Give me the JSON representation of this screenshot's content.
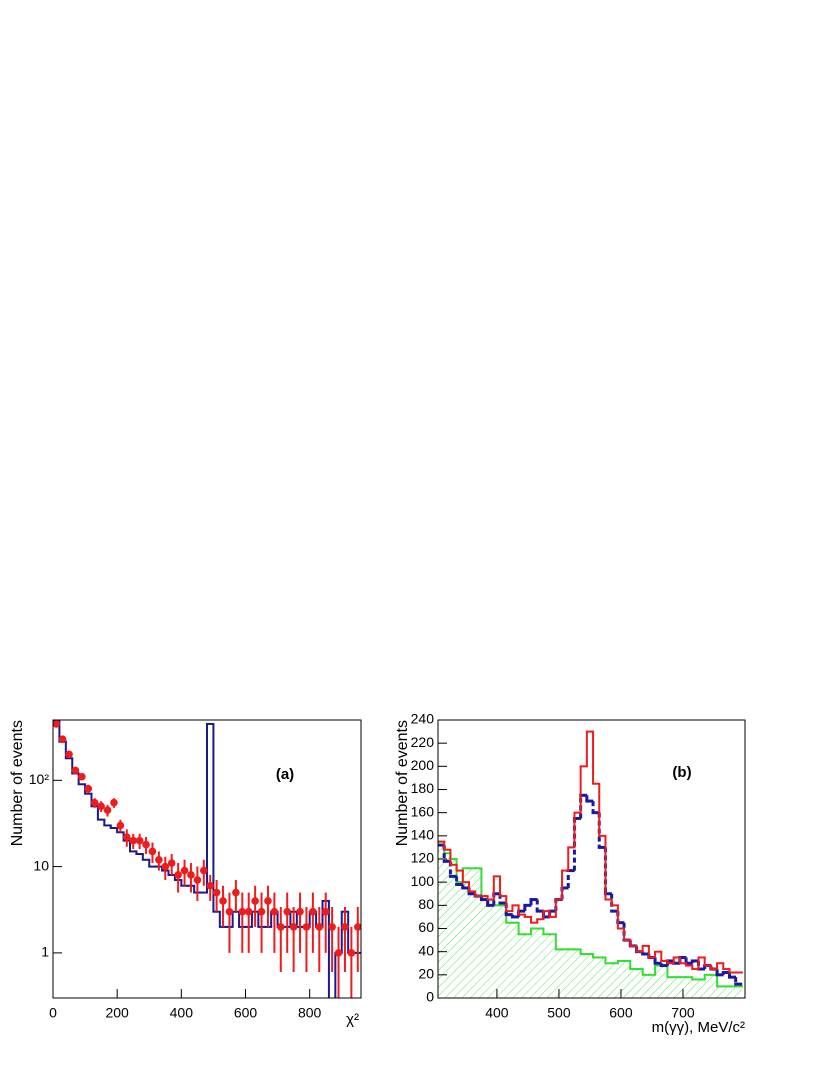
{
  "chart_data": [
    {
      "type": "histogram",
      "log_y": true,
      "xlabel": "χ²",
      "ylabel": "Number of events",
      "annotation": "(a)",
      "bins": [
        0,
        20,
        40,
        60,
        80,
        100,
        120,
        140,
        160,
        180,
        200,
        220,
        240,
        260,
        280,
        300,
        320,
        340,
        360,
        380,
        400,
        420,
        440,
        460,
        480,
        500,
        520,
        540,
        560,
        580,
        600,
        620,
        640,
        660,
        680,
        700,
        720,
        740,
        760,
        780,
        800,
        820,
        840,
        860,
        880,
        900,
        920,
        940,
        960
      ],
      "xlim": [
        0,
        960
      ],
      "ylim": [
        0.3,
        500
      ],
      "xticks": [
        0,
        200,
        400,
        600,
        800
      ],
      "yticks": [
        1,
        10,
        {
          "value": 100,
          "label": "10²"
        }
      ],
      "series": [
        {
          "color": "#1a1a8c",
          "style": "step",
          "values": [
            480,
            280,
            180,
            120,
            90,
            70,
            50,
            35,
            30,
            28,
            25,
            20,
            15,
            14,
            12,
            10,
            10,
            9,
            8,
            7,
            6,
            6,
            5,
            5,
            450,
            3,
            2,
            2,
            3,
            2,
            2,
            3,
            2,
            2,
            3,
            2,
            2,
            3,
            2,
            2,
            3,
            2,
            4,
            0,
            1,
            3,
            1,
            1
          ]
        },
        {
          "color": "#ee1c1c",
          "style": "points",
          "values": [
            450,
            300,
            200,
            130,
            110,
            80,
            55,
            50,
            45,
            55,
            30,
            22,
            20,
            20,
            18,
            15,
            12,
            10,
            11,
            8,
            9,
            8,
            7,
            9,
            6,
            5,
            4,
            3,
            5,
            3,
            3,
            4,
            3,
            4,
            3,
            2,
            3,
            2,
            3,
            2,
            3,
            2,
            3,
            2,
            1,
            2,
            1,
            2
          ],
          "errors": [
            21,
            17,
            14,
            11,
            10,
            9,
            7,
            7,
            7,
            7,
            5,
            5,
            4,
            4,
            4,
            4,
            3,
            3,
            3,
            3,
            3,
            3,
            3,
            3,
            2,
            2,
            2,
            2,
            2,
            2,
            2,
            2,
            2,
            2,
            2,
            1.4,
            2,
            1.4,
            2,
            1.4,
            2,
            1.4,
            2,
            1.4,
            1,
            1.4,
            1,
            1.4
          ]
        }
      ]
    },
    {
      "type": "histogram",
      "log_y": false,
      "xlabel": "m(γγ), MeV/c²",
      "ylabel": "Number of events",
      "annotation": "(b)",
      "bins": [
        305,
        315,
        325,
        335,
        345,
        355,
        365,
        375,
        385,
        395,
        405,
        415,
        425,
        435,
        445,
        455,
        465,
        475,
        485,
        495,
        505,
        515,
        525,
        535,
        545,
        555,
        565,
        575,
        585,
        595,
        605,
        615,
        625,
        635,
        645,
        655,
        665,
        675,
        685,
        695,
        705,
        715,
        725,
        735,
        745,
        755,
        765,
        775,
        785,
        795
      ],
      "xlim": [
        305,
        800
      ],
      "ylim": [
        0,
        240
      ],
      "xticks": [
        400,
        500,
        600,
        700
      ],
      "yticks": [
        0,
        20,
        40,
        60,
        80,
        100,
        120,
        140,
        160,
        180,
        200,
        220,
        240
      ],
      "series": [
        {
          "color": "#33dd33",
          "style": "step",
          "fill": "hatch",
          "values": [
            135,
            125,
            120,
            100,
            112,
            112,
            112,
            85,
            85,
            80,
            80,
            65,
            65,
            55,
            55,
            60,
            60,
            55,
            55,
            42,
            42,
            42,
            42,
            38,
            38,
            35,
            35,
            30,
            30,
            32,
            32,
            25,
            25,
            20,
            20,
            28,
            28,
            18,
            18,
            18,
            18,
            16,
            16,
            20,
            20,
            10,
            10,
            10,
            10
          ]
        },
        {
          "color": "#1a1aa0",
          "style": "dashed",
          "values": [
            132,
            118,
            105,
            98,
            95,
            90,
            88,
            85,
            80,
            90,
            82,
            72,
            70,
            75,
            80,
            85,
            75,
            70,
            75,
            85,
            95,
            110,
            155,
            175,
            170,
            160,
            130,
            90,
            75,
            65,
            50,
            45,
            40,
            38,
            35,
            30,
            28,
            32,
            30,
            35,
            30,
            32,
            25,
            28,
            25,
            20,
            22,
            18,
            12
          ]
        },
        {
          "color": "#ee1c1c",
          "style": "step",
          "values": [
            135,
            128,
            115,
            110,
            100,
            92,
            88,
            88,
            85,
            105,
            88,
            75,
            80,
            72,
            70,
            65,
            68,
            75,
            70,
            85,
            110,
            130,
            160,
            200,
            230,
            185,
            140,
            85,
            80,
            60,
            50,
            45,
            40,
            45,
            35,
            40,
            32,
            30,
            35,
            30,
            28,
            25,
            35,
            28,
            25,
            30,
            25,
            22,
            22
          ]
        }
      ]
    }
  ]
}
